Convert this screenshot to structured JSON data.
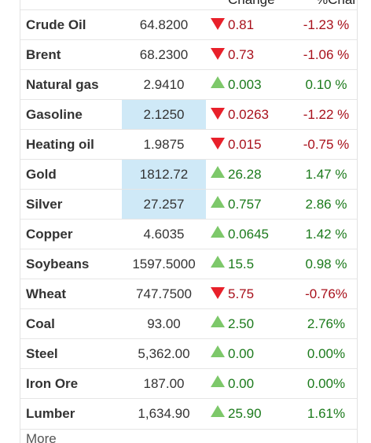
{
  "columns": {
    "change": "Change",
    "pct": "%Change"
  },
  "rows": [
    {
      "name": "Crude Oil",
      "price": "64.8200",
      "change": "0.81",
      "pct": "-1.23 %",
      "dir": "down",
      "highlight": false
    },
    {
      "name": "Brent",
      "price": "68.2300",
      "change": "0.73",
      "pct": "-1.06 %",
      "dir": "down",
      "highlight": false
    },
    {
      "name": "Natural gas",
      "price": "2.9410",
      "change": "0.003",
      "pct": "0.10 %",
      "dir": "up",
      "highlight": false
    },
    {
      "name": "Gasoline",
      "price": "2.1250",
      "change": "0.0263",
      "pct": "-1.22 %",
      "dir": "down",
      "highlight": true
    },
    {
      "name": "Heating oil",
      "price": "1.9875",
      "change": "0.015",
      "pct": "-0.75 %",
      "dir": "down",
      "highlight": false
    },
    {
      "name": "Gold",
      "price": "1812.72",
      "change": "26.28",
      "pct": "1.47 %",
      "dir": "up",
      "highlight": true
    },
    {
      "name": "Silver",
      "price": "27.257",
      "change": "0.757",
      "pct": "2.86 %",
      "dir": "up",
      "highlight": true
    },
    {
      "name": "Copper",
      "price": "4.6035",
      "change": "0.0645",
      "pct": "1.42 %",
      "dir": "up",
      "highlight": false
    },
    {
      "name": "Soybeans",
      "price": "1597.5000",
      "change": "15.5",
      "pct": "0.98 %",
      "dir": "up",
      "highlight": false
    },
    {
      "name": "Wheat",
      "price": "747.7500",
      "change": "5.75",
      "pct": "-0.76%",
      "dir": "down",
      "highlight": false
    },
    {
      "name": "Coal",
      "price": "93.00",
      "change": "2.50",
      "pct": "2.76%",
      "dir": "up",
      "highlight": false
    },
    {
      "name": "Steel",
      "price": "5,362.00",
      "change": "0.00",
      "pct": "0.00%",
      "dir": "up",
      "highlight": false
    },
    {
      "name": "Iron Ore",
      "price": "187.00",
      "change": "0.00",
      "pct": "0.00%",
      "dir": "up",
      "highlight": false
    },
    {
      "name": "Lumber",
      "price": "1,634.90",
      "change": "25.90",
      "pct": "1.61%",
      "dir": "up",
      "highlight": false
    }
  ],
  "more_link": "More",
  "colors": {
    "down_text": "#a8101b",
    "up_text": "#1b7a1b",
    "down_arrow": "#e8202a",
    "up_arrow": "#7dc86a",
    "highlight_bg": "#cfe9f7"
  },
  "icons": {
    "down": "triangle-down-icon",
    "up": "triangle-up-icon"
  }
}
